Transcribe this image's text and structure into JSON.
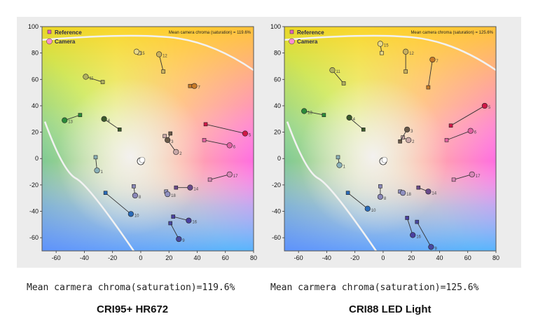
{
  "chart_data": [
    {
      "type": "scatter",
      "title": "Mean carmera chroma(saturation)=119.6%",
      "subtitle": "CRI95+ HR672",
      "annotation": "Mean camera chroma (saturation) = 119.6%",
      "xlim": [
        -70,
        80
      ],
      "ylim": [
        -70,
        100
      ],
      "xticks": [
        "-60",
        "-40",
        "-20",
        "0",
        "20",
        "40",
        "60",
        "80"
      ],
      "yticks": [
        "100",
        "80",
        "60",
        "40",
        "20",
        "0",
        "-20",
        "-40",
        "-60"
      ],
      "legend": {
        "position": "top-left",
        "entries": [
          "Reference",
          "Camera"
        ]
      },
      "pairs": [
        {
          "label": "1",
          "ref": [
            -32,
            1
          ],
          "cam": [
            -31,
            -9
          ],
          "color": "#8ab0b8"
        },
        {
          "label": "2",
          "ref": [
            17,
            17
          ],
          "cam": [
            25,
            5
          ],
          "color": "#c8a8a8"
        },
        {
          "label": "3",
          "ref": [
            21,
            19
          ],
          "cam": [
            19,
            14
          ],
          "color": "#6a5a4a"
        },
        {
          "label": "4",
          "ref": [
            -15,
            22
          ],
          "cam": [
            -26,
            30
          ],
          "color": "#3c5a2c"
        },
        {
          "label": "5",
          "ref": [
            46,
            26
          ],
          "cam": [
            74,
            19
          ],
          "color": "#d01848"
        },
        {
          "label": "6",
          "ref": [
            45,
            14
          ],
          "cam": [
            63,
            10
          ],
          "color": "#e060a0"
        },
        {
          "label": "7",
          "ref": [
            35,
            55
          ],
          "cam": [
            38,
            55
          ],
          "color": "#c87a28"
        },
        {
          "label": "8",
          "ref": [
            -5,
            -21
          ],
          "cam": [
            -4,
            -28
          ],
          "color": "#8a88b8"
        },
        {
          "label": "9",
          "ref": [
            21,
            -49
          ],
          "cam": [
            27,
            -61
          ],
          "color": "#4848a0"
        },
        {
          "label": "10",
          "ref": [
            -25,
            -26
          ],
          "cam": [
            -7,
            -42
          ],
          "color": "#2a6ab8"
        },
        {
          "label": "11",
          "ref": [
            -27,
            58
          ],
          "cam": [
            -39,
            62
          ],
          "color": "#b0b060"
        },
        {
          "label": "12",
          "ref": [
            16,
            66
          ],
          "cam": [
            13,
            79
          ],
          "color": "#c8b060"
        },
        {
          "label": "13",
          "ref": [
            -43,
            33
          ],
          "cam": [
            -54,
            29
          ],
          "color": "#2a8a3a"
        },
        {
          "label": "14",
          "ref": [
            25,
            -22
          ],
          "cam": [
            35,
            -22
          ],
          "color": "#6a4a8a"
        },
        {
          "label": "15",
          "ref": [
            -1,
            80
          ],
          "cam": [
            -3,
            81
          ],
          "color": "#e8d888"
        },
        {
          "label": "16",
          "ref": [
            23,
            -44
          ],
          "cam": [
            34,
            -47
          ],
          "color": "#4a40a0"
        },
        {
          "label": "17",
          "ref": [
            49,
            -16
          ],
          "cam": [
            63,
            -12
          ],
          "color": "#d888b8"
        },
        {
          "label": "18",
          "ref": [
            18,
            -25
          ],
          "cam": [
            19,
            -27
          ],
          "color": "#9090c0"
        }
      ]
    },
    {
      "type": "scatter",
      "title": "Mean carmera chroma(saturation)=125.6%",
      "subtitle": "CRI88 LED Light",
      "annotation": "Mean camera chroma (saturation) = 125.6%",
      "xlim": [
        -70,
        80
      ],
      "ylim": [
        -70,
        100
      ],
      "xticks": [
        "-60",
        "-40",
        "-20",
        "0",
        "20",
        "40",
        "60",
        "80"
      ],
      "yticks": [
        "100",
        "80",
        "60",
        "40",
        "20",
        "0",
        "-20",
        "-40",
        "-60"
      ],
      "legend": {
        "position": "top-left",
        "entries": [
          "Reference",
          "Camera"
        ]
      },
      "pairs": [
        {
          "label": "1",
          "ref": [
            -32,
            1
          ],
          "cam": [
            -31,
            -5
          ],
          "color": "#8ab0b8"
        },
        {
          "label": "2",
          "ref": [
            14,
            16
          ],
          "cam": [
            18,
            14
          ],
          "color": "#c8a8a8"
        },
        {
          "label": "3",
          "ref": [
            12,
            13
          ],
          "cam": [
            17,
            22
          ],
          "color": "#6a5a4a"
        },
        {
          "label": "4",
          "ref": [
            -14,
            22
          ],
          "cam": [
            -24,
            31
          ],
          "color": "#3c5a2c"
        },
        {
          "label": "5",
          "ref": [
            48,
            25
          ],
          "cam": [
            72,
            40
          ],
          "color": "#d01848"
        },
        {
          "label": "6",
          "ref": [
            45,
            14
          ],
          "cam": [
            62,
            21
          ],
          "color": "#e060a0"
        },
        {
          "label": "7",
          "ref": [
            32,
            54
          ],
          "cam": [
            35,
            75
          ],
          "color": "#c87a28"
        },
        {
          "label": "8",
          "ref": [
            -2,
            -21
          ],
          "cam": [
            -2,
            -29
          ],
          "color": "#8a88b8"
        },
        {
          "label": "9",
          "ref": [
            24,
            -48
          ],
          "cam": [
            34,
            -67
          ],
          "color": "#4848a0"
        },
        {
          "label": "10",
          "ref": [
            -25,
            -26
          ],
          "cam": [
            -11,
            -38
          ],
          "color": "#2a6ab8"
        },
        {
          "label": "11",
          "ref": [
            -28,
            57
          ],
          "cam": [
            -36,
            67
          ],
          "color": "#b0b060"
        },
        {
          "label": "12",
          "ref": [
            16,
            66
          ],
          "cam": [
            16,
            81
          ],
          "color": "#c8b060"
        },
        {
          "label": "13",
          "ref": [
            -42,
            33
          ],
          "cam": [
            -56,
            36
          ],
          "color": "#2a8a3a"
        },
        {
          "label": "14",
          "ref": [
            25,
            -22
          ],
          "cam": [
            32,
            -25
          ],
          "color": "#6a4a8a"
        },
        {
          "label": "15",
          "ref": [
            -1,
            80
          ],
          "cam": [
            -2,
            87
          ],
          "color": "#e8d888"
        },
        {
          "label": "16",
          "ref": [
            17,
            -45
          ],
          "cam": [
            21,
            -58
          ],
          "color": "#4a40a0"
        },
        {
          "label": "17",
          "ref": [
            50,
            -16
          ],
          "cam": [
            63,
            -12
          ],
          "color": "#d888b8"
        },
        {
          "label": "18",
          "ref": [
            12,
            -25
          ],
          "cam": [
            14,
            -26
          ],
          "color": "#9090c0"
        }
      ]
    }
  ],
  "captions": [
    {
      "main": "Mean carmera chroma(saturation)=119.6%",
      "sub": "CRI95+ HR672"
    },
    {
      "main": "Mean carmera chroma(saturation)=125.6%",
      "sub": "CRI88 LED Light"
    }
  ]
}
